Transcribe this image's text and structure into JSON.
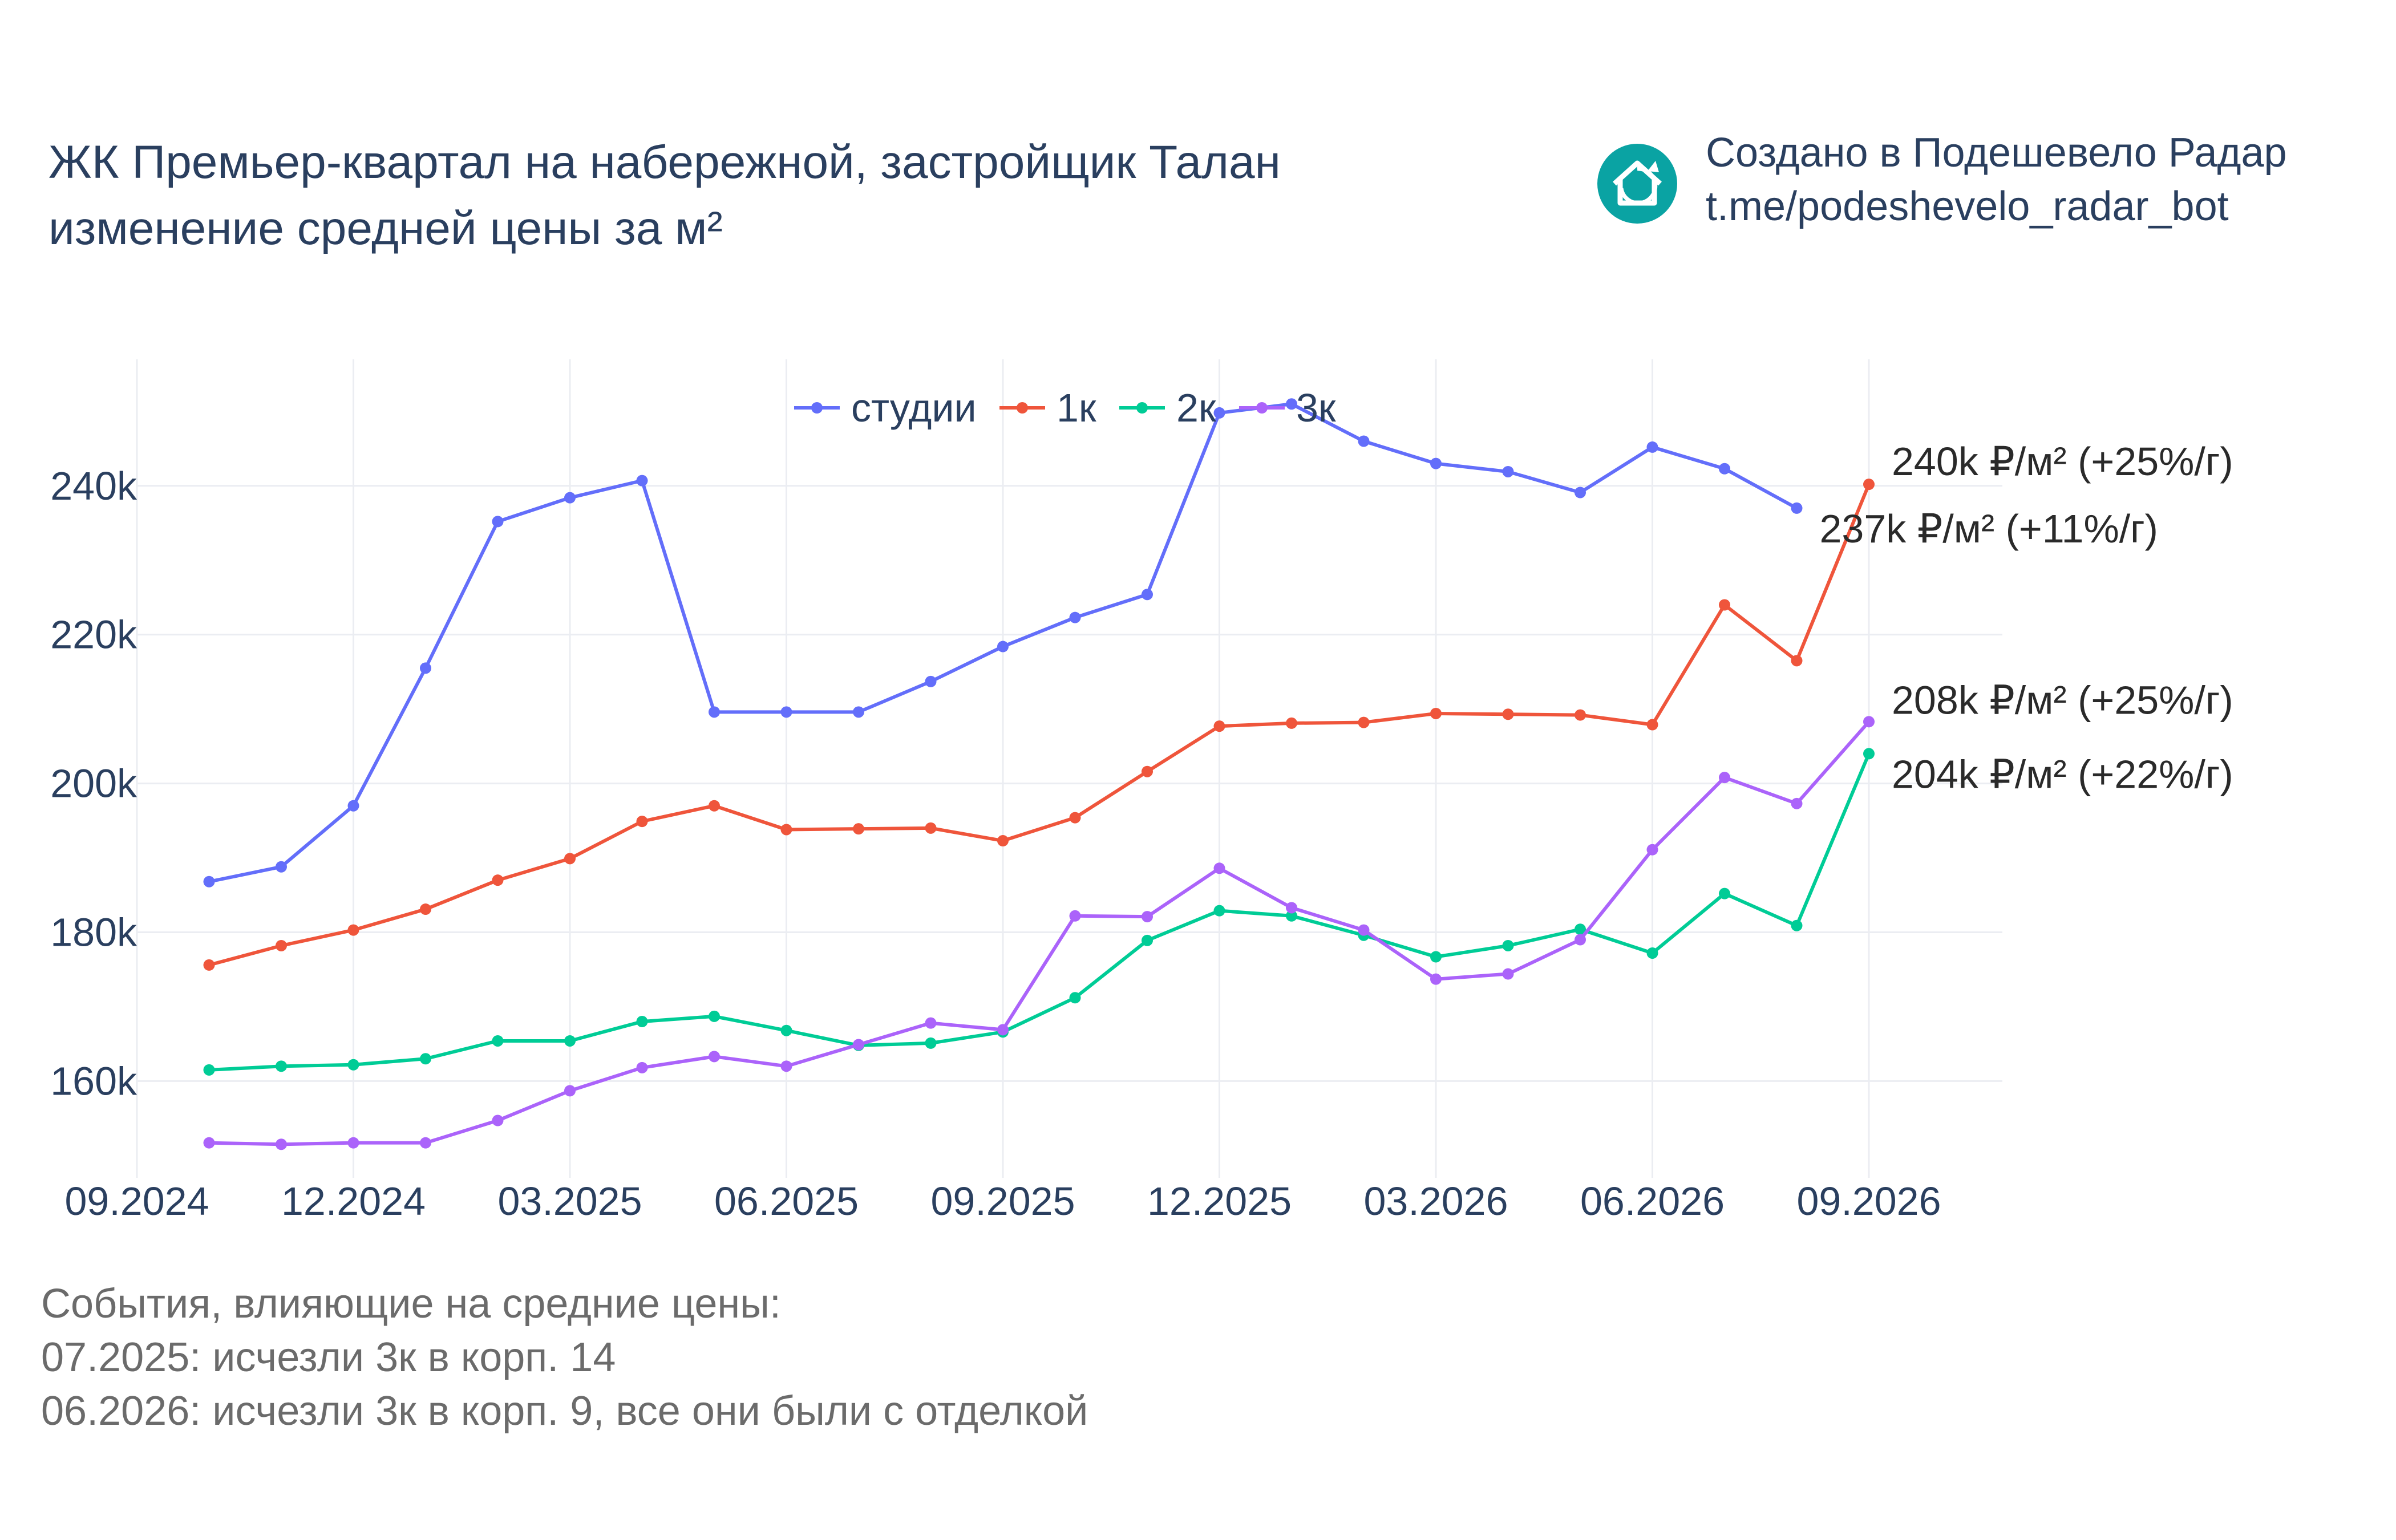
{
  "header": {
    "title_line1": "ЖК Премьер-квартал на набережной, застройщик Талан",
    "title_line2": "изменение средней цены за м²"
  },
  "brand": {
    "line1": "Создано в Подешевело Радар",
    "line2": "t.me/podeshevelo_radar_bot",
    "logo_icon": "house-refresh-icon",
    "logo_color": "#0aa3a3"
  },
  "notes": {
    "heading": "События, влияющие на средние цены:",
    "items": [
      "07.2025: исчезли 3к в корп. 14",
      "06.2026: исчезли 3к в корп. 9, все они были с отделкой"
    ]
  },
  "chart_data": {
    "type": "line",
    "x": [
      "10.2024",
      "11.2024",
      "12.2024",
      "01.2025",
      "02.2025",
      "03.2025",
      "04.2025",
      "05.2025",
      "06.2025",
      "07.2025",
      "08.2025",
      "09.2025",
      "10.2025",
      "11.2025",
      "12.2025",
      "01.2026",
      "02.2026",
      "03.2026",
      "04.2026",
      "05.2026",
      "06.2026",
      "07.2026",
      "08.2026",
      "09.2026"
    ],
    "x_ticks": [
      "09.2024",
      "12.2024",
      "03.2025",
      "06.2025",
      "09.2025",
      "12.2025",
      "03.2026",
      "06.2026",
      "09.2026"
    ],
    "y_ticks": [
      "160k",
      "180k",
      "200k",
      "220k",
      "240k"
    ],
    "y_tick_values": [
      160000,
      180000,
      200000,
      220000,
      240000
    ],
    "ylim": [
      147000,
      257000
    ],
    "grid": true,
    "legend_position": "top-center",
    "series": [
      {
        "name": "студии",
        "color": "#636efa",
        "values": [
          186800,
          188800,
          197000,
          215500,
          235200,
          238400,
          240700,
          209600,
          209600,
          209600,
          213700,
          218400,
          222300,
          225400,
          249800,
          251000,
          246000,
          243000,
          241900,
          239100,
          245200,
          242300,
          237000,
          null
        ]
      },
      {
        "name": "1к",
        "color": "#ef553b",
        "values": [
          175600,
          178200,
          180300,
          183100,
          187000,
          189900,
          194900,
          197000,
          193800,
          193900,
          194000,
          192300,
          195400,
          201600,
          207700,
          208100,
          208200,
          209400,
          209300,
          209200,
          207900,
          224000,
          216500,
          240200
        ]
      },
      {
        "name": "2к",
        "color": "#00cc96",
        "values": [
          161500,
          162000,
          162200,
          163000,
          165400,
          165400,
          168000,
          168700,
          166800,
          164800,
          165100,
          166600,
          171200,
          178900,
          182900,
          182200,
          179600,
          176700,
          178200,
          180400,
          177200,
          185200,
          180900,
          204000
        ]
      },
      {
        "name": "3к",
        "color": "#ab63fa",
        "values": [
          151700,
          151500,
          151700,
          151700,
          154700,
          158700,
          161800,
          163300,
          162000,
          164900,
          167800,
          166900,
          182200,
          182100,
          188600,
          183300,
          180300,
          173700,
          174400,
          179000,
          191100,
          200800,
          197300,
          208300
        ]
      }
    ],
    "annotations": [
      {
        "text": "240k ₽/м² (+25%/г)",
        "series": "1к"
      },
      {
        "text": "237k ₽/м² (+11%/г)",
        "series": "студии"
      },
      {
        "text": "208k ₽/м² (+25%/г)",
        "series": "3к"
      },
      {
        "text": "204k ₽/м² (+22%/г)",
        "series": "2к"
      }
    ]
  }
}
